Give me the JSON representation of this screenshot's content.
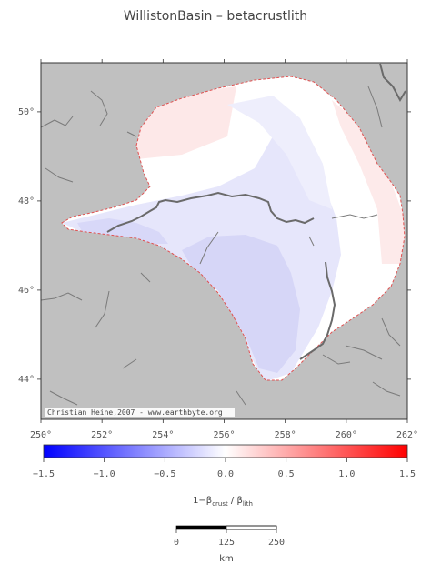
{
  "title": "WillistonBasin – betacrustlith",
  "map": {
    "lon_ticks": [
      "250°",
      "252°",
      "254°",
      "256°",
      "258°",
      "260°",
      "262°"
    ],
    "lat_ticks": [
      "50°",
      "48°",
      "46°",
      "44°"
    ],
    "lon_range": [
      250,
      262
    ],
    "lat_range": [
      43.1,
      51.1
    ],
    "credit": "Christian Heine,2007 - www.earthbyte.org",
    "colors": {
      "background": "#c0c0c0",
      "basin_outline": "#e05050",
      "rivers": "#808080"
    }
  },
  "colorbar": {
    "min": -1.5,
    "max": 1.5,
    "tick_labels": [
      "−1.5",
      "−1.0",
      "−0.5",
      "0.0",
      "0.5",
      "1.0",
      "1.5"
    ],
    "label_main": "1−β",
    "label_sub1": "crust",
    "label_sep": " / β",
    "label_sub2": "lith",
    "colors": {
      "low": "#0000ff",
      "mid": "#ffffff",
      "high": "#ff0000"
    }
  },
  "scalebar": {
    "tick_labels": [
      "0",
      "125",
      "250"
    ],
    "unit": "km"
  }
}
